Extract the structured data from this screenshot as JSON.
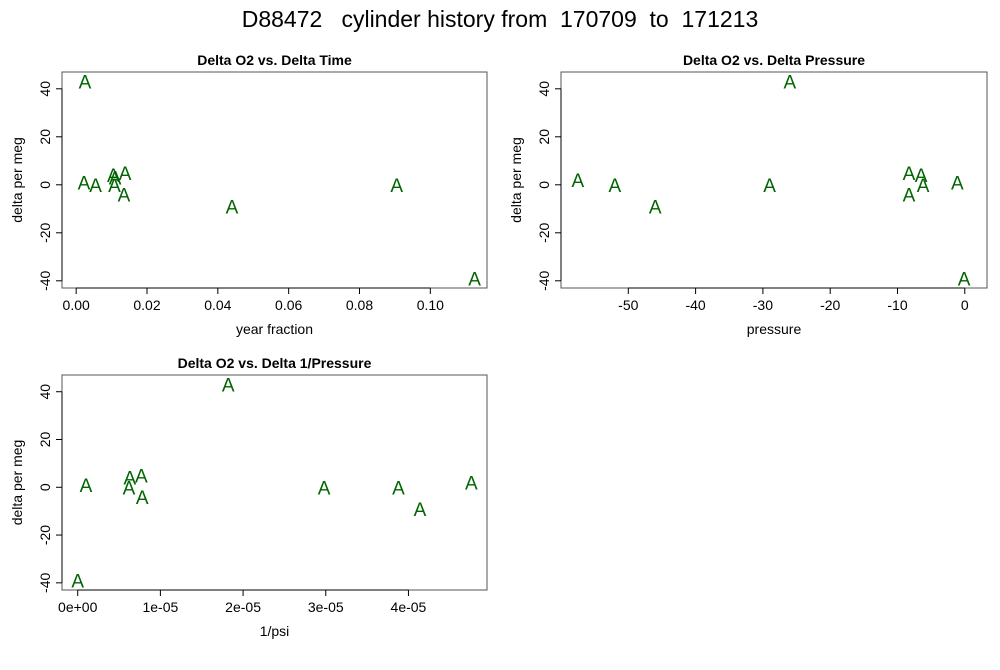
{
  "page": {
    "title": "D88472   cylinder history from  170709  to  171213"
  },
  "chart_data": [
    {
      "type": "scatter",
      "title": "Delta O2 vs. Delta Time",
      "xlabel": "year fraction",
      "ylabel": "delta per meg",
      "xlim": [
        -0.004,
        0.116
      ],
      "ylim": [
        -43,
        47
      ],
      "xticks": [
        0.0,
        0.02,
        0.04,
        0.06,
        0.08,
        0.1
      ],
      "xtick_labels": [
        "0.00",
        "0.02",
        "0.04",
        "0.06",
        "0.08",
        "0.10"
      ],
      "yticks": [
        -40,
        -20,
        0,
        20,
        40
      ],
      "ytick_labels": [
        "-40",
        "-20",
        "0",
        "20",
        "40"
      ],
      "marker": "A",
      "marker_color": "#006400",
      "series": [
        {
          "x": [
            0.0025,
            0.0022,
            0.0055,
            0.0105,
            0.011,
            0.0108,
            0.0138,
            0.0135,
            0.044,
            0.0905,
            0.1125
          ],
          "y": [
            43,
            1,
            0,
            4,
            3,
            0,
            5,
            -4,
            -9,
            0,
            -39
          ]
        }
      ]
    },
    {
      "type": "scatter",
      "title": "Delta O2 vs. Delta Pressure",
      "xlabel": "pressure",
      "ylabel": "delta per meg",
      "xlim": [
        -60,
        3.3
      ],
      "ylim": [
        -43,
        47
      ],
      "xticks": [
        -50,
        -40,
        -30,
        -20,
        -10,
        0
      ],
      "xtick_labels": [
        "-50",
        "-40",
        "-30",
        "-20",
        "-10",
        "0"
      ],
      "yticks": [
        -40,
        -20,
        0,
        20,
        40
      ],
      "ytick_labels": [
        "-40",
        "-20",
        "0",
        "20",
        "40"
      ],
      "marker": "A",
      "marker_color": "#006400",
      "series": [
        {
          "x": [
            -57.5,
            -52,
            -46,
            -29,
            -26,
            -8.3,
            -8.3,
            -6.5,
            -6.2,
            -1.1,
            -0.1
          ],
          "y": [
            2,
            0,
            -9,
            0,
            43,
            5,
            -4,
            4,
            0,
            1,
            -39
          ]
        }
      ]
    },
    {
      "type": "scatter",
      "title": "Delta O2 vs. Delta 1/Pressure",
      "xlabel": "1/psi",
      "ylabel": "delta per meg",
      "xlim": [
        -1.9e-06,
        4.95e-05
      ],
      "ylim": [
        -43,
        47
      ],
      "xticks": [
        0,
        1e-05,
        2e-05,
        3e-05,
        4e-05
      ],
      "xtick_labels": [
        "0e+00",
        "1e-05",
        "2e-05",
        "3e-05",
        "4e-05"
      ],
      "yticks": [
        -40,
        -20,
        0,
        20,
        40
      ],
      "ytick_labels": [
        "-40",
        "-20",
        "0",
        "20",
        "40"
      ],
      "marker": "A",
      "marker_color": "#006400",
      "series": [
        {
          "x": [
            0.0,
            1e-06,
            6.3e-06,
            6.2e-06,
            7.7e-06,
            7.8e-06,
            1.82e-05,
            2.98e-05,
            3.88e-05,
            4.14e-05,
            4.76e-05
          ],
          "y": [
            -39,
            1,
            4,
            0,
            5,
            -4,
            43,
            0,
            0,
            -9,
            2
          ]
        }
      ]
    }
  ]
}
